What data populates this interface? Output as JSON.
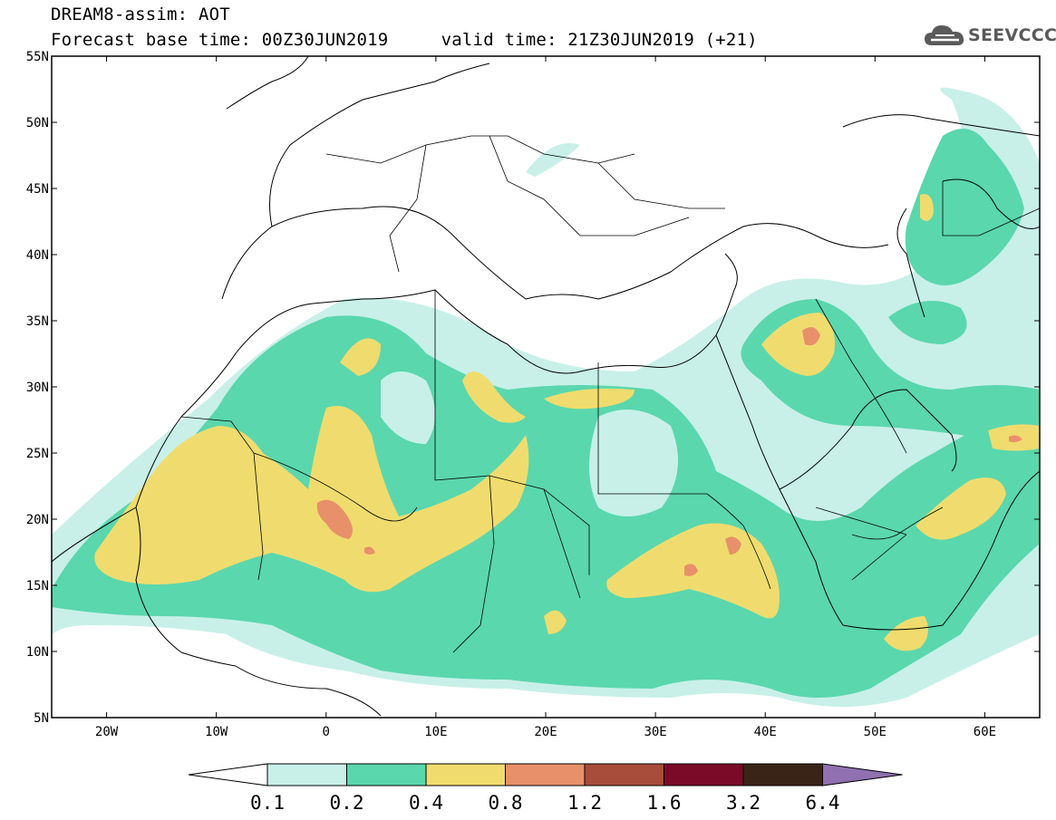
{
  "header": {
    "line1": "DREAM8-assim: AOT",
    "line2": "Forecast base time: 00Z30JUN2019     valid time: 21Z30JUN2019 (+21)"
  },
  "logo": {
    "text": "SEEVCCC",
    "icon": "cloud-icon",
    "color": "#5a5a5a"
  },
  "map": {
    "projection": "latlon",
    "lon_range": [
      -25,
      65
    ],
    "lat_range": [
      5,
      55
    ],
    "lon_ticks": [
      {
        "value": -20,
        "label": "20W"
      },
      {
        "value": -10,
        "label": "10W"
      },
      {
        "value": 0,
        "label": "0"
      },
      {
        "value": 10,
        "label": "10E"
      },
      {
        "value": 20,
        "label": "20E"
      },
      {
        "value": 30,
        "label": "30E"
      },
      {
        "value": 40,
        "label": "40E"
      },
      {
        "value": 50,
        "label": "50E"
      },
      {
        "value": 60,
        "label": "60E"
      }
    ],
    "lat_ticks": [
      {
        "value": 55,
        "label": "55N"
      },
      {
        "value": 50,
        "label": "50N"
      },
      {
        "value": 45,
        "label": "45N"
      },
      {
        "value": 40,
        "label": "40N"
      },
      {
        "value": 35,
        "label": "35N"
      },
      {
        "value": 30,
        "label": "30N"
      },
      {
        "value": 25,
        "label": "25N"
      },
      {
        "value": 20,
        "label": "20N"
      },
      {
        "value": 15,
        "label": "15N"
      },
      {
        "value": 10,
        "label": "10N"
      },
      {
        "value": 5,
        "label": "5N"
      }
    ]
  },
  "colorbar": {
    "labels": [
      "0.1",
      "0.2",
      "0.4",
      "0.8",
      "1.2",
      "1.6",
      "3.2",
      "6.4"
    ],
    "colors": [
      "#c8f0e8",
      "#5ad7ad",
      "#f0dc6e",
      "#e8906a",
      "#a84c3c",
      "#7a0a28",
      "#3a2418",
      "#9070b0"
    ],
    "below_color": "#ffffff"
  }
}
